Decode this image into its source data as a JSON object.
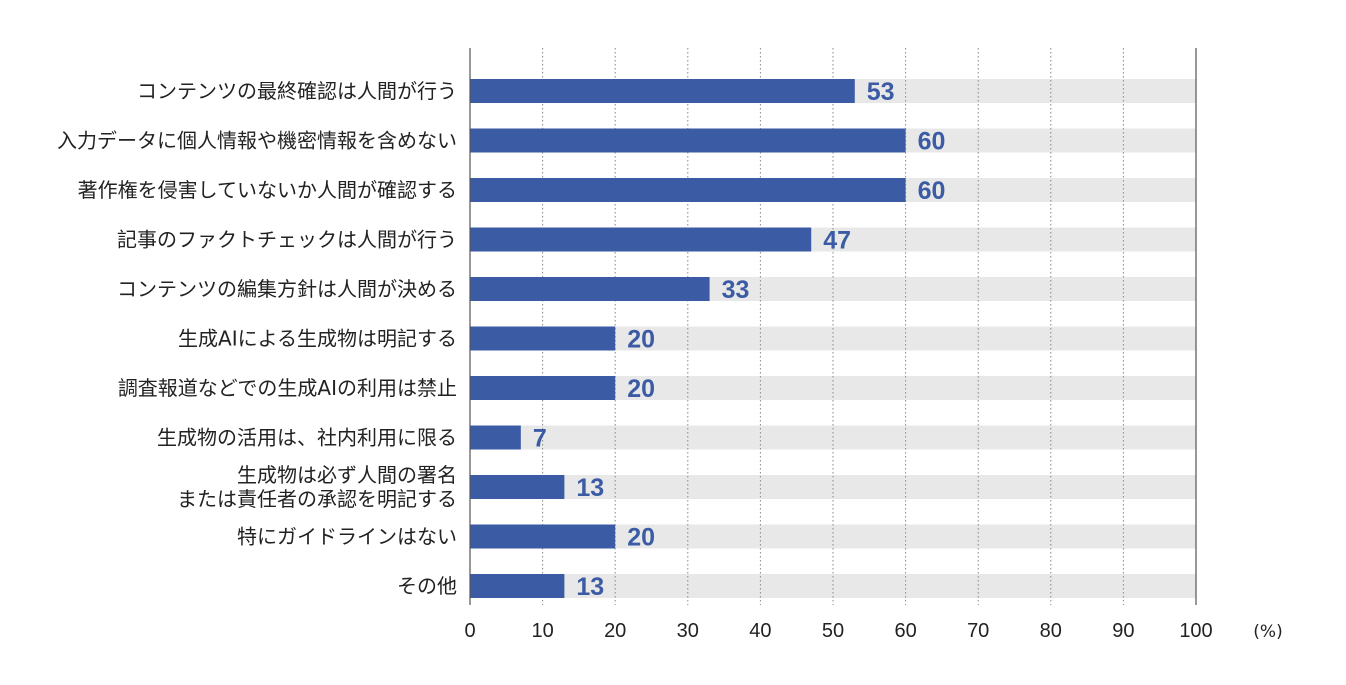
{
  "chart_data": {
    "type": "bar",
    "orientation": "horizontal",
    "categories": [
      [
        "コンテンツの最終確認は人間が行う"
      ],
      [
        "入力データに個人情報や機密情報を含めない"
      ],
      [
        "著作権を侵害していないか人間が確認する"
      ],
      [
        "記事のファクトチェックは人間が行う"
      ],
      [
        "コンテンツの編集方針は人間が決める"
      ],
      [
        "生成AIによる生成物は明記する"
      ],
      [
        "調査報道などでの生成AIの利用は禁止"
      ],
      [
        "生成物の活用は、社内利用に限る"
      ],
      [
        "生成物は必ず人間の署名",
        "または責任者の承認を明記する"
      ],
      [
        "特にガイドラインはない"
      ],
      [
        "その他"
      ]
    ],
    "values": [
      53,
      60,
      60,
      47,
      33,
      20,
      20,
      7,
      13,
      20,
      13
    ],
    "value_labels": [
      "53",
      "60",
      "60",
      "47",
      "33",
      "20",
      "20",
      "7",
      "13",
      "20",
      "13"
    ],
    "xlim": [
      0,
      100
    ],
    "xticks": [
      "0",
      "10",
      "20",
      "30",
      "40",
      "50",
      "60",
      "70",
      "80",
      "90",
      "100"
    ],
    "xunit": "(%)",
    "grid": true,
    "colors": {
      "bar": "#3b5ba5",
      "track": "#e8e8e8",
      "value_text": "#3b5ba5",
      "grid": "#888888",
      "axis": "#555555"
    }
  }
}
